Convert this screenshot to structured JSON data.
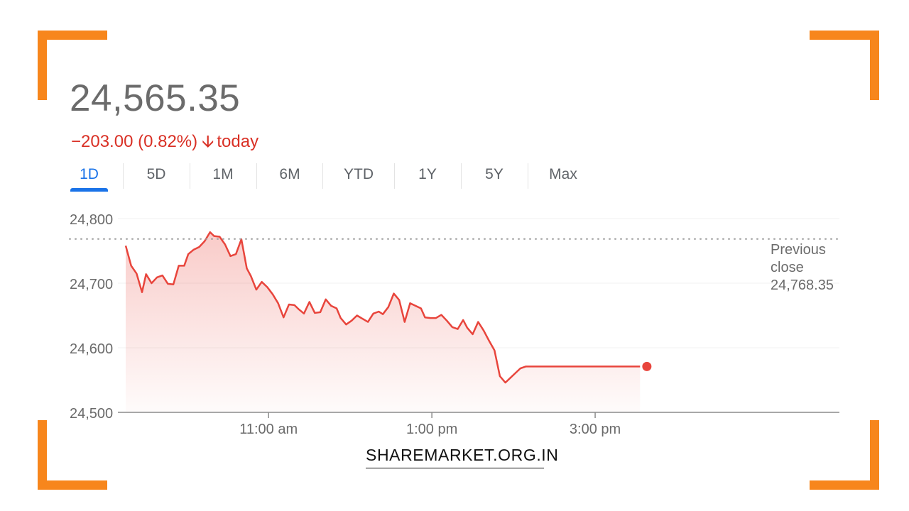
{
  "quote": {
    "price": "24,565.35",
    "change": "−203.00 (0.82%)",
    "change_arrow": "🡫",
    "change_suffix": "today",
    "accent_negative": "#d93025"
  },
  "tabs": [
    {
      "label": "1D",
      "active": true
    },
    {
      "label": "5D",
      "active": false
    },
    {
      "label": "1M",
      "active": false
    },
    {
      "label": "6M",
      "active": false
    },
    {
      "label": "YTD",
      "active": false
    },
    {
      "label": "1Y",
      "active": false
    },
    {
      "label": "5Y",
      "active": false
    },
    {
      "label": "Max",
      "active": false
    }
  ],
  "brand": "SHAREMARKET.ORG.IN",
  "chart_data": {
    "type": "area",
    "title": "",
    "xlabel": "",
    "ylabel": "",
    "ylim": [
      24500,
      24800
    ],
    "yticks": [
      24800,
      24700,
      24600,
      24500
    ],
    "ytick_labels": [
      "24,800",
      "24,700",
      "24,600",
      "24,500"
    ],
    "xlim": [
      555,
      1020
    ],
    "xticks": [
      660,
      780,
      900
    ],
    "xtick_labels": [
      "11:00 am",
      "1:00 pm",
      "3:00 pm"
    ],
    "grid": true,
    "reference_line": {
      "label_line1": "Previous",
      "label_line2": "close",
      "value_label": "24,768.35",
      "value": 24768.35
    },
    "line_color": "#e8453c",
    "series": [
      {
        "name": "",
        "x": [
          555,
          559,
          563,
          567,
          570,
          574,
          578,
          582,
          586,
          590,
          594,
          598,
          601,
          605,
          609,
          613,
          617,
          620,
          624,
          628,
          632,
          636,
          640,
          644,
          647,
          651,
          655,
          659,
          663,
          667,
          671,
          675,
          679,
          682,
          686,
          690,
          694,
          698,
          702,
          706,
          710,
          713,
          717,
          721,
          725,
          729,
          733,
          737,
          741,
          744,
          748,
          752,
          756,
          760,
          764,
          768,
          772,
          775,
          779,
          783,
          787,
          791,
          795,
          799,
          803,
          806,
          810,
          814,
          818,
          822,
          826,
          830,
          834,
          837,
          841,
          845,
          849,
          853,
          857,
          861,
          865,
          868,
          872,
          876,
          880,
          884,
          888,
          892,
          896,
          899,
          903,
          907,
          911,
          915,
          920,
          926,
          933
        ],
        "y": [
          24758,
          24727,
          24715,
          24686,
          24714,
          24700,
          24709,
          24712,
          24699,
          24698,
          24727,
          24727,
          24745,
          24752,
          24756,
          24765,
          24779,
          24773,
          24772,
          24760,
          24742,
          24745,
          24768,
          24723,
          24711,
          24690,
          24702,
          24694,
          24683,
          24669,
          24647,
          24667,
          24666,
          24660,
          24653,
          24671,
          24654,
          24655,
          24675,
          24665,
          24661,
          24646,
          24636,
          24642,
          24650,
          24645,
          24640,
          24653,
          24656,
          24652,
          24663,
          24684,
          24674,
          24640,
          24669,
          24665,
          24661,
          24647,
          24646,
          24646,
          24651,
          24642,
          24632,
          24629,
          24643,
          24631,
          24621,
          24640,
          24627,
          24611,
          24596,
          24556,
          24546,
          24552,
          24560,
          24568,
          24571,
          24571,
          24571,
          24571,
          24571,
          24571,
          24571,
          24571,
          24571,
          24571,
          24571,
          24571,
          24571,
          24571,
          24571,
          24571,
          24571,
          24571,
          24571,
          24571,
          24571
        ],
        "last_point": {
          "x": 938,
          "y": 24571
        }
      }
    ]
  }
}
